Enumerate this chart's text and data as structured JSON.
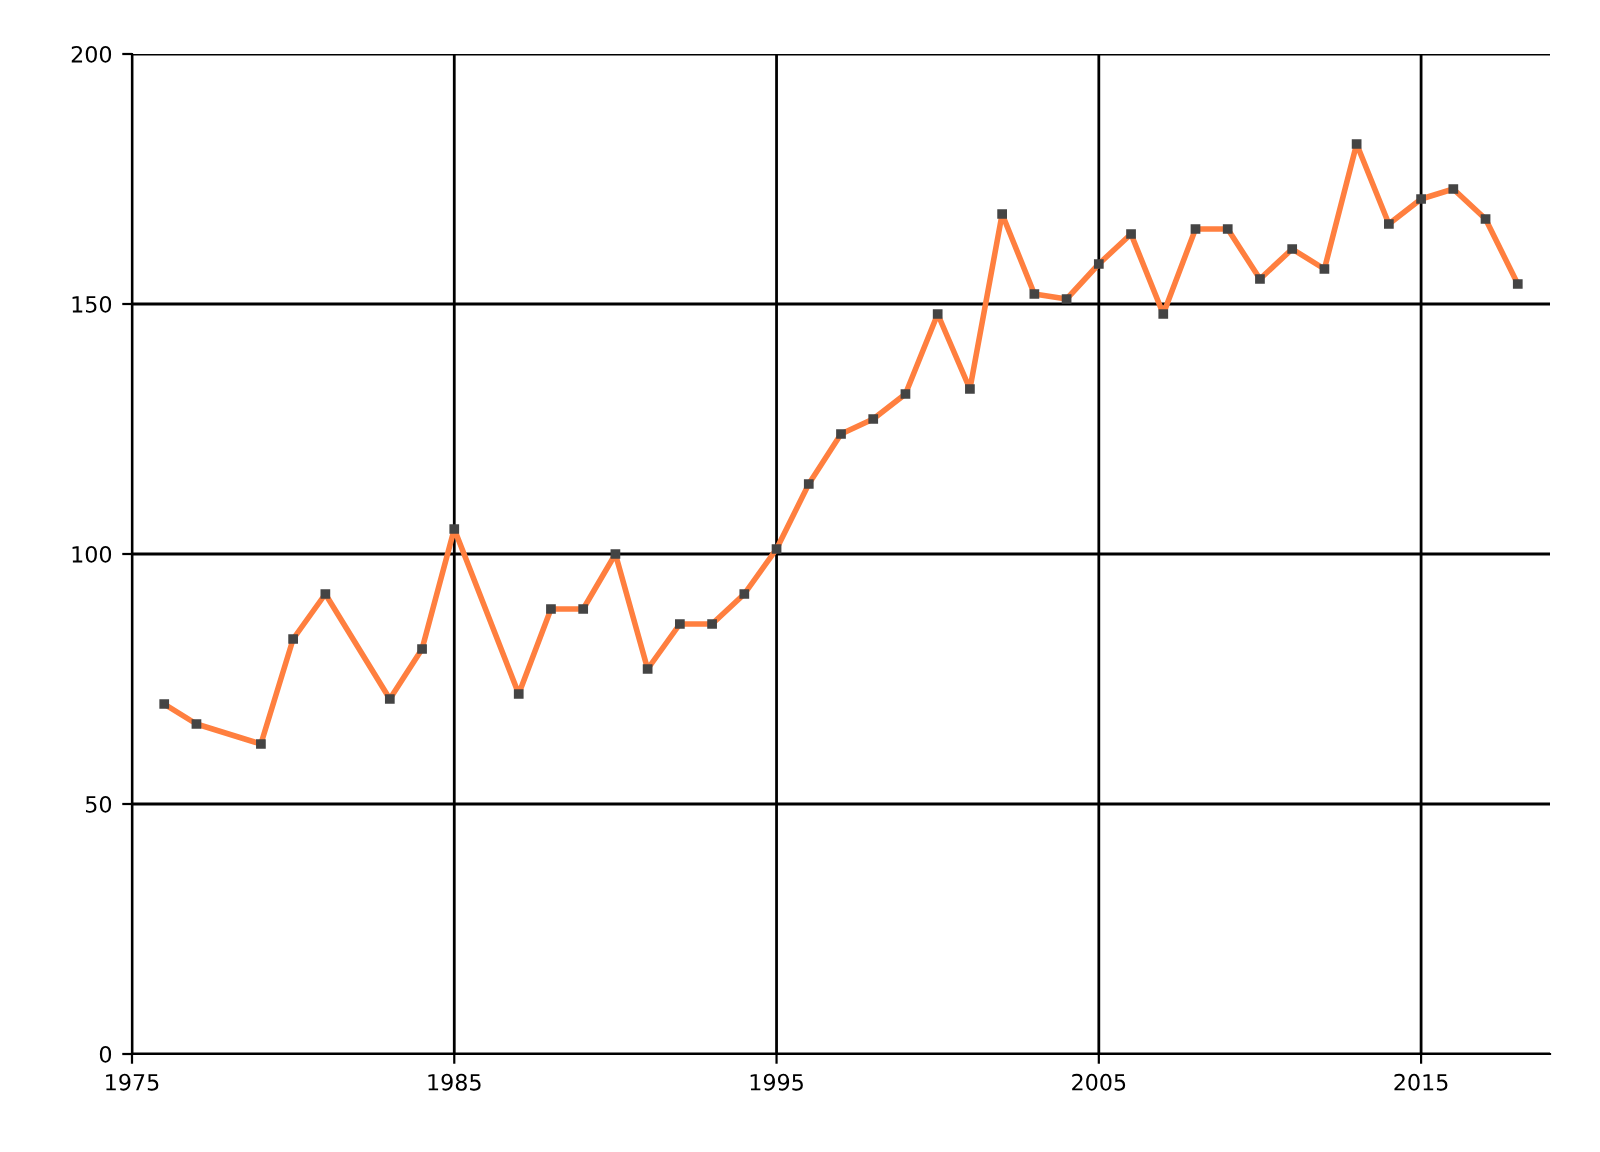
{
  "chart_data": {
    "type": "line",
    "x": [
      1976,
      1977,
      1979,
      1980,
      1981,
      1983,
      1984,
      1985,
      1987,
      1988,
      1989,
      1990,
      1991,
      1992,
      1993,
      1994,
      1995,
      1996,
      1997,
      1998,
      1999,
      2000,
      2001,
      2002,
      2003,
      2004,
      2005,
      2006,
      2007,
      2008,
      2009,
      2010,
      2011,
      2012,
      2013,
      2014,
      2015,
      2016,
      2017,
      2018
    ],
    "series": [
      {
        "color": "#ff7f3f",
        "values": [
          70,
          66,
          62,
          83,
          92,
          71,
          81,
          105,
          72,
          89,
          89,
          100,
          77,
          86,
          86,
          92,
          101,
          114,
          124,
          127,
          132,
          148,
          133,
          168,
          152,
          151,
          158,
          164,
          148,
          165,
          165,
          155,
          161,
          157,
          182,
          166,
          171,
          173,
          167,
          154
        ]
      }
    ],
    "xlim": [
      1975,
      2019
    ],
    "xticks": [
      1975,
      1985,
      1995,
      2005,
      2015
    ],
    "ylim": [
      0,
      200
    ],
    "yticks": [
      0,
      50,
      100,
      150,
      200
    ],
    "grid": true,
    "marker": "square",
    "line_style": "solid"
  }
}
